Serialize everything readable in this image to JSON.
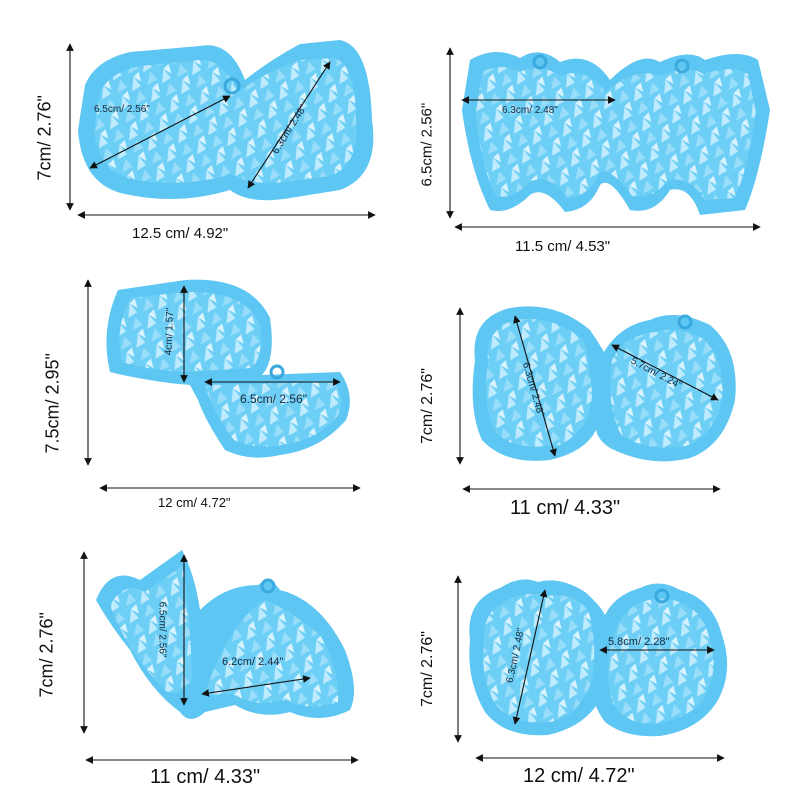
{
  "colors": {
    "mold": "#5ec6f2",
    "mold_dark": "#3aa9dd",
    "mold_light": "#a6e4fb",
    "holo": "#d7f3ff",
    "line": "#111111"
  },
  "molds": [
    {
      "name": "spider-pair",
      "width_label": "12.5 cm/ 4.92\"",
      "height_label": "7cm/ 2.76\"",
      "inner_a": "6.5cm/ 2.56\"",
      "inner_b": "6.3cm/ 2.48\""
    },
    {
      "name": "hanging-spiders",
      "width_label": "11.5 cm/ 4.53\"",
      "height_label": "6.5cm/ 2.56\"",
      "inner_a": "6.3cm/ 2.48\""
    },
    {
      "name": "fan-webs",
      "width_label": "12 cm/ 4.72\"",
      "height_label": "7.5cm/ 2.95\"",
      "inner_a": "4cm/ 1.57\"",
      "inner_b": "6.5cm/ 2.56\""
    },
    {
      "name": "round-web-pair",
      "width_label": "11 cm/ 4.33\"",
      "height_label": "7cm/ 2.76\"",
      "inner_a": "6.3cm/ 2.48\"",
      "inner_b": "5.7cm/ 2.24\""
    },
    {
      "name": "corner-webs",
      "width_label": "11 cm/ 4.33\"",
      "height_label": "7cm/ 2.76\"",
      "inner_a": "6.5cm/ 2.56\"",
      "inner_b": "6.2cm/ 2.44\""
    },
    {
      "name": "scalloped-webs",
      "width_label": "12 cm/ 4.72\"",
      "height_label": "7cm/ 2.76\"",
      "inner_a": "6.3cm/ 2.48\"",
      "inner_b": "5.8cm/ 2.28\""
    }
  ]
}
